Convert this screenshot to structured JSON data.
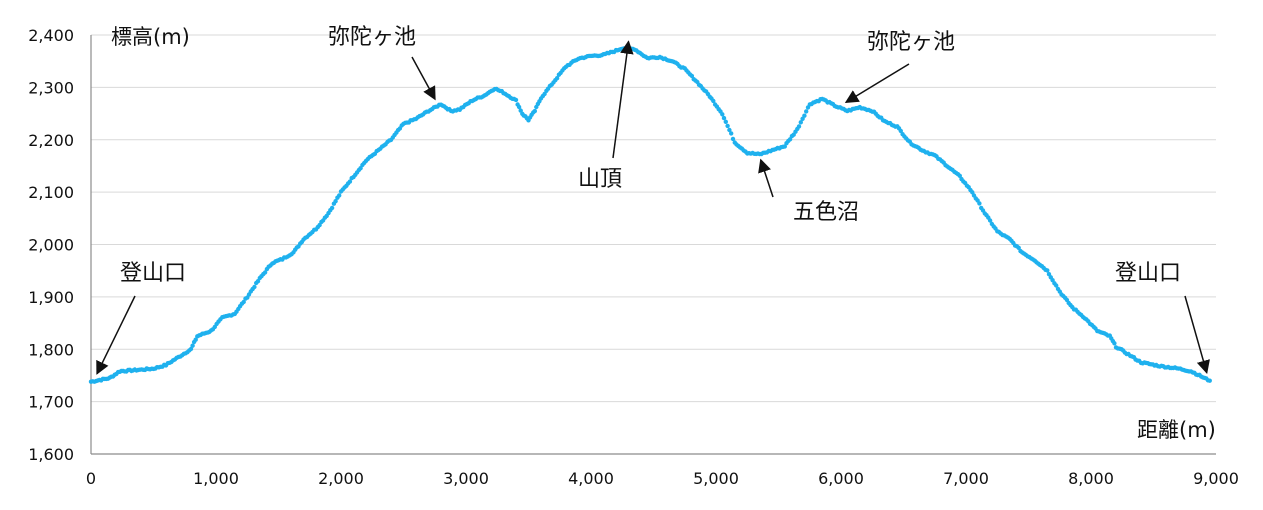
{
  "chart_data": {
    "type": "scatter",
    "ylabel": "標高(m)",
    "xlabel": "距離(m)",
    "xlim": [
      0,
      9000
    ],
    "ylim": [
      1600,
      2400
    ],
    "x_ticks": [
      "0",
      "1,000",
      "2,000",
      "3,000",
      "4,000",
      "5,000",
      "6,000",
      "7,000",
      "8,000",
      "9,000"
    ],
    "y_ticks": [
      "1,600",
      "1,700",
      "1,800",
      "1,900",
      "2,000",
      "2,100",
      "2,200",
      "2,300",
      "2,400"
    ],
    "grid": true,
    "marker_color": "#1fb1ee",
    "points": [
      [
        0,
        1738
      ],
      [
        150,
        1745
      ],
      [
        230,
        1758
      ],
      [
        350,
        1760
      ],
      [
        500,
        1763
      ],
      [
        600,
        1770
      ],
      [
        700,
        1785
      ],
      [
        800,
        1800
      ],
      [
        850,
        1825
      ],
      [
        960,
        1835
      ],
      [
        1050,
        1860
      ],
      [
        1150,
        1868
      ],
      [
        1250,
        1900
      ],
      [
        1350,
        1935
      ],
      [
        1450,
        1965
      ],
      [
        1530,
        1972
      ],
      [
        1620,
        1985
      ],
      [
        1700,
        2010
      ],
      [
        1800,
        2030
      ],
      [
        1900,
        2060
      ],
      [
        2000,
        2100
      ],
      [
        2100,
        2130
      ],
      [
        2200,
        2160
      ],
      [
        2300,
        2180
      ],
      [
        2400,
        2200
      ],
      [
        2500,
        2230
      ],
      [
        2600,
        2240
      ],
      [
        2700,
        2255
      ],
      [
        2800,
        2268
      ],
      [
        2880,
        2255
      ],
      [
        2950,
        2258
      ],
      [
        3050,
        2275
      ],
      [
        3150,
        2285
      ],
      [
        3230,
        2298
      ],
      [
        3300,
        2290
      ],
      [
        3400,
        2275
      ],
      [
        3450,
        2250
      ],
      [
        3500,
        2238
      ],
      [
        3550,
        2255
      ],
      [
        3600,
        2280
      ],
      [
        3700,
        2310
      ],
      [
        3800,
        2340
      ],
      [
        3900,
        2355
      ],
      [
        4000,
        2360
      ],
      [
        4100,
        2362
      ],
      [
        4200,
        2370
      ],
      [
        4250,
        2375
      ],
      [
        4350,
        2373
      ],
      [
        4450,
        2356
      ],
      [
        4550,
        2358
      ],
      [
        4650,
        2350
      ],
      [
        4750,
        2335
      ],
      [
        4850,
        2310
      ],
      [
        4950,
        2283
      ],
      [
        5050,
        2250
      ],
      [
        5150,
        2195
      ],
      [
        5250,
        2175
      ],
      [
        5350,
        2172
      ],
      [
        5450,
        2180
      ],
      [
        5550,
        2188
      ],
      [
        5650,
        2220
      ],
      [
        5750,
        2268
      ],
      [
        5850,
        2278
      ],
      [
        5950,
        2265
      ],
      [
        6050,
        2255
      ],
      [
        6150,
        2262
      ],
      [
        6250,
        2255
      ],
      [
        6350,
        2235
      ],
      [
        6450,
        2225
      ],
      [
        6550,
        2195
      ],
      [
        6650,
        2180
      ],
      [
        6750,
        2170
      ],
      [
        6850,
        2150
      ],
      [
        6950,
        2130
      ],
      [
        7050,
        2100
      ],
      [
        7150,
        2060
      ],
      [
        7250,
        2025
      ],
      [
        7350,
        2010
      ],
      [
        7450,
        1985
      ],
      [
        7550,
        1970
      ],
      [
        7650,
        1950
      ],
      [
        7750,
        1910
      ],
      [
        7850,
        1880
      ],
      [
        7950,
        1860
      ],
      [
        8050,
        1835
      ],
      [
        8150,
        1825
      ],
      [
        8200,
        1805
      ],
      [
        8300,
        1790
      ],
      [
        8400,
        1775
      ],
      [
        8550,
        1768
      ],
      [
        8700,
        1763
      ],
      [
        8800,
        1758
      ],
      [
        8950,
        1740
      ]
    ],
    "annotations": [
      {
        "label": "登山口",
        "target": [
          0,
          1738
        ]
      },
      {
        "label": "弥陀ヶ池",
        "target": [
          2800,
          2268
        ]
      },
      {
        "label": "山頂",
        "target": [
          4300,
          2374
        ]
      },
      {
        "label": "五色沼",
        "target": [
          5350,
          2173
        ]
      },
      {
        "label": "弥陀ヶ池",
        "target": [
          6000,
          2262
        ]
      },
      {
        "label": "登山口",
        "target": [
          8950,
          1740
        ]
      }
    ]
  }
}
